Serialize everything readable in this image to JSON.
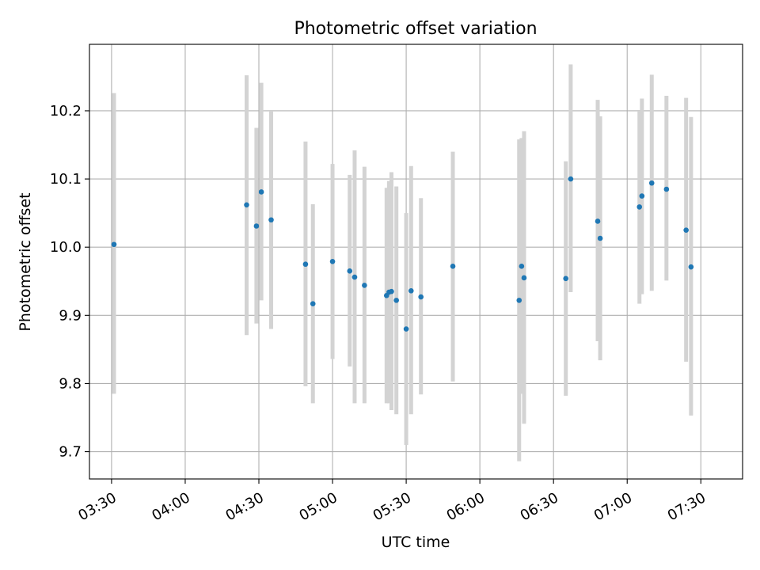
{
  "chart_data": {
    "type": "scatter",
    "title": "Photometric offset variation",
    "xlabel": "UTC time",
    "ylabel": "Photometric offset",
    "x_is_time": true,
    "xlim": [
      "03:21",
      "07:47"
    ],
    "ylim": [
      9.66,
      10.2975
    ],
    "x_ticks": [
      "03:30",
      "04:00",
      "04:30",
      "05:00",
      "05:30",
      "06:00",
      "06:30",
      "07:00",
      "07:30"
    ],
    "y_ticks": [
      9.7,
      9.8,
      9.9,
      10.0,
      10.1,
      10.2
    ],
    "grid": true,
    "point_color": "#1f77b4",
    "errorbar_color": "#d3d3d3",
    "points": [
      {
        "x": "03:31",
        "y": 10.004,
        "ylow": 9.785,
        "yhigh": 10.226
      },
      {
        "x": "04:25",
        "y": 10.062,
        "ylow": 9.871,
        "yhigh": 10.252
      },
      {
        "x": "04:29",
        "y": 10.031,
        "ylow": 9.888,
        "yhigh": 10.175
      },
      {
        "x": "04:31",
        "y": 10.081,
        "ylow": 9.922,
        "yhigh": 10.241
      },
      {
        "x": "04:35",
        "y": 10.04,
        "ylow": 9.88,
        "yhigh": 10.199
      },
      {
        "x": "04:49",
        "y": 9.975,
        "ylow": 9.796,
        "yhigh": 10.155
      },
      {
        "x": "04:52",
        "y": 9.917,
        "ylow": 9.771,
        "yhigh": 10.063
      },
      {
        "x": "05:00",
        "y": 9.979,
        "ylow": 9.836,
        "yhigh": 10.122
      },
      {
        "x": "05:07",
        "y": 9.965,
        "ylow": 9.825,
        "yhigh": 10.106
      },
      {
        "x": "05:09",
        "y": 9.956,
        "ylow": 9.771,
        "yhigh": 10.142
      },
      {
        "x": "05:13",
        "y": 9.944,
        "ylow": 9.771,
        "yhigh": 10.118
      },
      {
        "x": "05:22",
        "y": 9.929,
        "ylow": 9.771,
        "yhigh": 10.087
      },
      {
        "x": "05:23",
        "y": 9.934,
        "ylow": 9.771,
        "yhigh": 10.097
      },
      {
        "x": "05:24",
        "y": 9.935,
        "ylow": 9.761,
        "yhigh": 10.11
      },
      {
        "x": "05:26",
        "y": 9.922,
        "ylow": 9.755,
        "yhigh": 10.089
      },
      {
        "x": "05:30",
        "y": 9.88,
        "ylow": 9.71,
        "yhigh": 10.05
      },
      {
        "x": "05:32",
        "y": 9.936,
        "ylow": 9.755,
        "yhigh": 10.119
      },
      {
        "x": "05:36",
        "y": 9.927,
        "ylow": 9.784,
        "yhigh": 10.072
      },
      {
        "x": "05:49",
        "y": 9.972,
        "ylow": 9.803,
        "yhigh": 10.14
      },
      {
        "x": "06:16",
        "y": 9.922,
        "ylow": 9.686,
        "yhigh": 10.158
      },
      {
        "x": "06:17",
        "y": 9.972,
        "ylow": 9.785,
        "yhigh": 10.16
      },
      {
        "x": "06:18",
        "y": 9.955,
        "ylow": 9.741,
        "yhigh": 10.17
      },
      {
        "x": "06:35",
        "y": 9.954,
        "ylow": 9.782,
        "yhigh": 10.126
      },
      {
        "x": "06:37",
        "y": 10.1,
        "ylow": 9.934,
        "yhigh": 10.268
      },
      {
        "x": "06:48",
        "y": 10.038,
        "ylow": 9.862,
        "yhigh": 10.216
      },
      {
        "x": "06:49",
        "y": 10.013,
        "ylow": 9.834,
        "yhigh": 10.192
      },
      {
        "x": "07:05",
        "y": 10.059,
        "ylow": 9.917,
        "yhigh": 10.2
      },
      {
        "x": "07:06",
        "y": 10.075,
        "ylow": 9.931,
        "yhigh": 10.218
      },
      {
        "x": "07:10",
        "y": 10.094,
        "ylow": 9.936,
        "yhigh": 10.253
      },
      {
        "x": "07:16",
        "y": 10.085,
        "ylow": 9.951,
        "yhigh": 10.222
      },
      {
        "x": "07:24",
        "y": 10.025,
        "ylow": 9.832,
        "yhigh": 10.219
      },
      {
        "x": "07:26",
        "y": 9.971,
        "ylow": 9.753,
        "yhigh": 10.191
      }
    ]
  }
}
